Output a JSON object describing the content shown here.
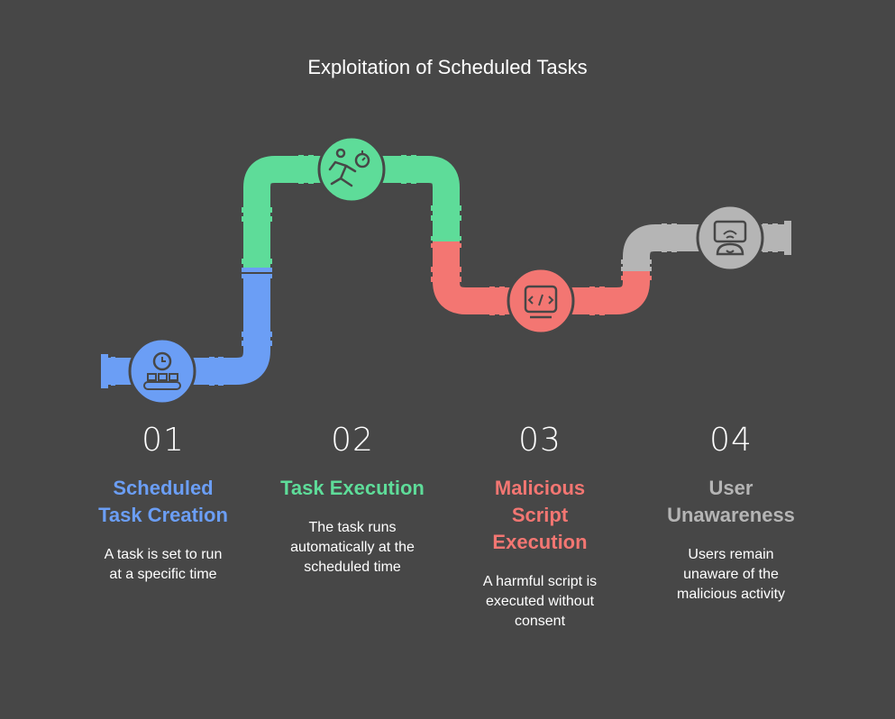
{
  "title": "Exploitation of Scheduled Tasks",
  "colors": {
    "background": "#474747",
    "blue": "#6b9ef5",
    "green": "#5edc99",
    "red": "#f37672",
    "gray": "#b5b5b5"
  },
  "steps": [
    {
      "number": "01",
      "heading_lines": [
        "Scheduled",
        "Task Creation"
      ],
      "desc_lines": [
        "A task is set to run",
        "at a specific time"
      ],
      "icon": "clock-conveyor-icon",
      "color": "#6b9ef5"
    },
    {
      "number": "02",
      "heading_lines": [
        "Task Execution"
      ],
      "desc_lines": [
        "The task runs",
        "automatically at the",
        "scheduled time"
      ],
      "icon": "running-stopwatch-icon",
      "color": "#5edc99"
    },
    {
      "number": "03",
      "heading_lines": [
        "Malicious",
        "Script",
        "Execution"
      ],
      "desc_lines": [
        "A harmful script is",
        "executed without",
        "consent"
      ],
      "icon": "code-script-icon",
      "color": "#f37672"
    },
    {
      "number": "04",
      "heading_lines": [
        "User",
        "Unawareness"
      ],
      "desc_lines": [
        "Users remain",
        "unaware of the",
        "malicious activity"
      ],
      "icon": "oblivious-user-icon",
      "color": "#b5b5b5"
    }
  ]
}
